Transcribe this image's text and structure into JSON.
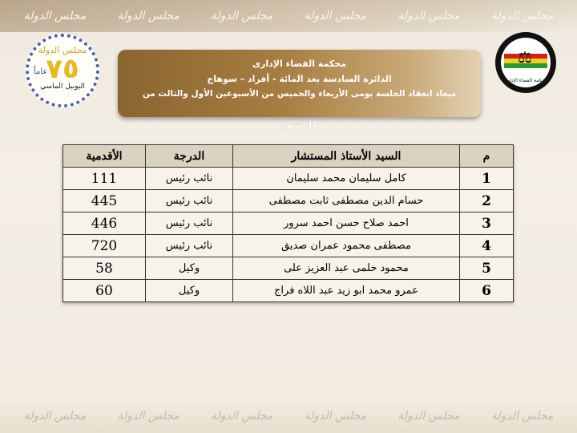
{
  "watermark": "مجلس الدولة",
  "logos": {
    "left": {
      "top": "مجلس الدولة",
      "number": "٧٥",
      "years": "عاماً",
      "bottom": "اليوبيل الماسي"
    },
    "right": {
      "caption": "محكمة القضاء الإدارى",
      "ring": "مجلس الدولة"
    }
  },
  "header": {
    "line1": "محكمة القضاء الإدارى",
    "line2": "الدائرة السادسة بعد المائة - أفراد – سوهاج",
    "line3": "ميعاد انعقاد الجلسة يومى الأربعاء والخميس من الأسبوعين الأول والثالث من",
    "line4": "كل شهر"
  },
  "table": {
    "columns": [
      "م",
      "السيد الأستاذ المستشار",
      "الدرجة",
      "الأقدمية"
    ],
    "rows": [
      {
        "no": "1",
        "name": "كامل سليمان محمد سليمان",
        "grade": "نائب رئيس",
        "seniority": "111"
      },
      {
        "no": "2",
        "name": "حسام الدين مصطفى ثابت مصطفى",
        "grade": "نائب رئيس",
        "seniority": "445"
      },
      {
        "no": "3",
        "name": "احمد صلاح حسن احمد سرور",
        "grade": "نائب رئيس",
        "seniority": "446"
      },
      {
        "no": "4",
        "name": "مصطفى محمود عمران صديق",
        "grade": "نائب رئيس",
        "seniority": "720"
      },
      {
        "no": "5",
        "name": "محمود حلمى عبد العزيز على",
        "grade": "وكيل",
        "seniority": "58"
      },
      {
        "no": "6",
        "name": "عمرو محمد ابو زيد عبد اللاه فراج",
        "grade": "وكيل",
        "seniority": "60"
      }
    ]
  }
}
